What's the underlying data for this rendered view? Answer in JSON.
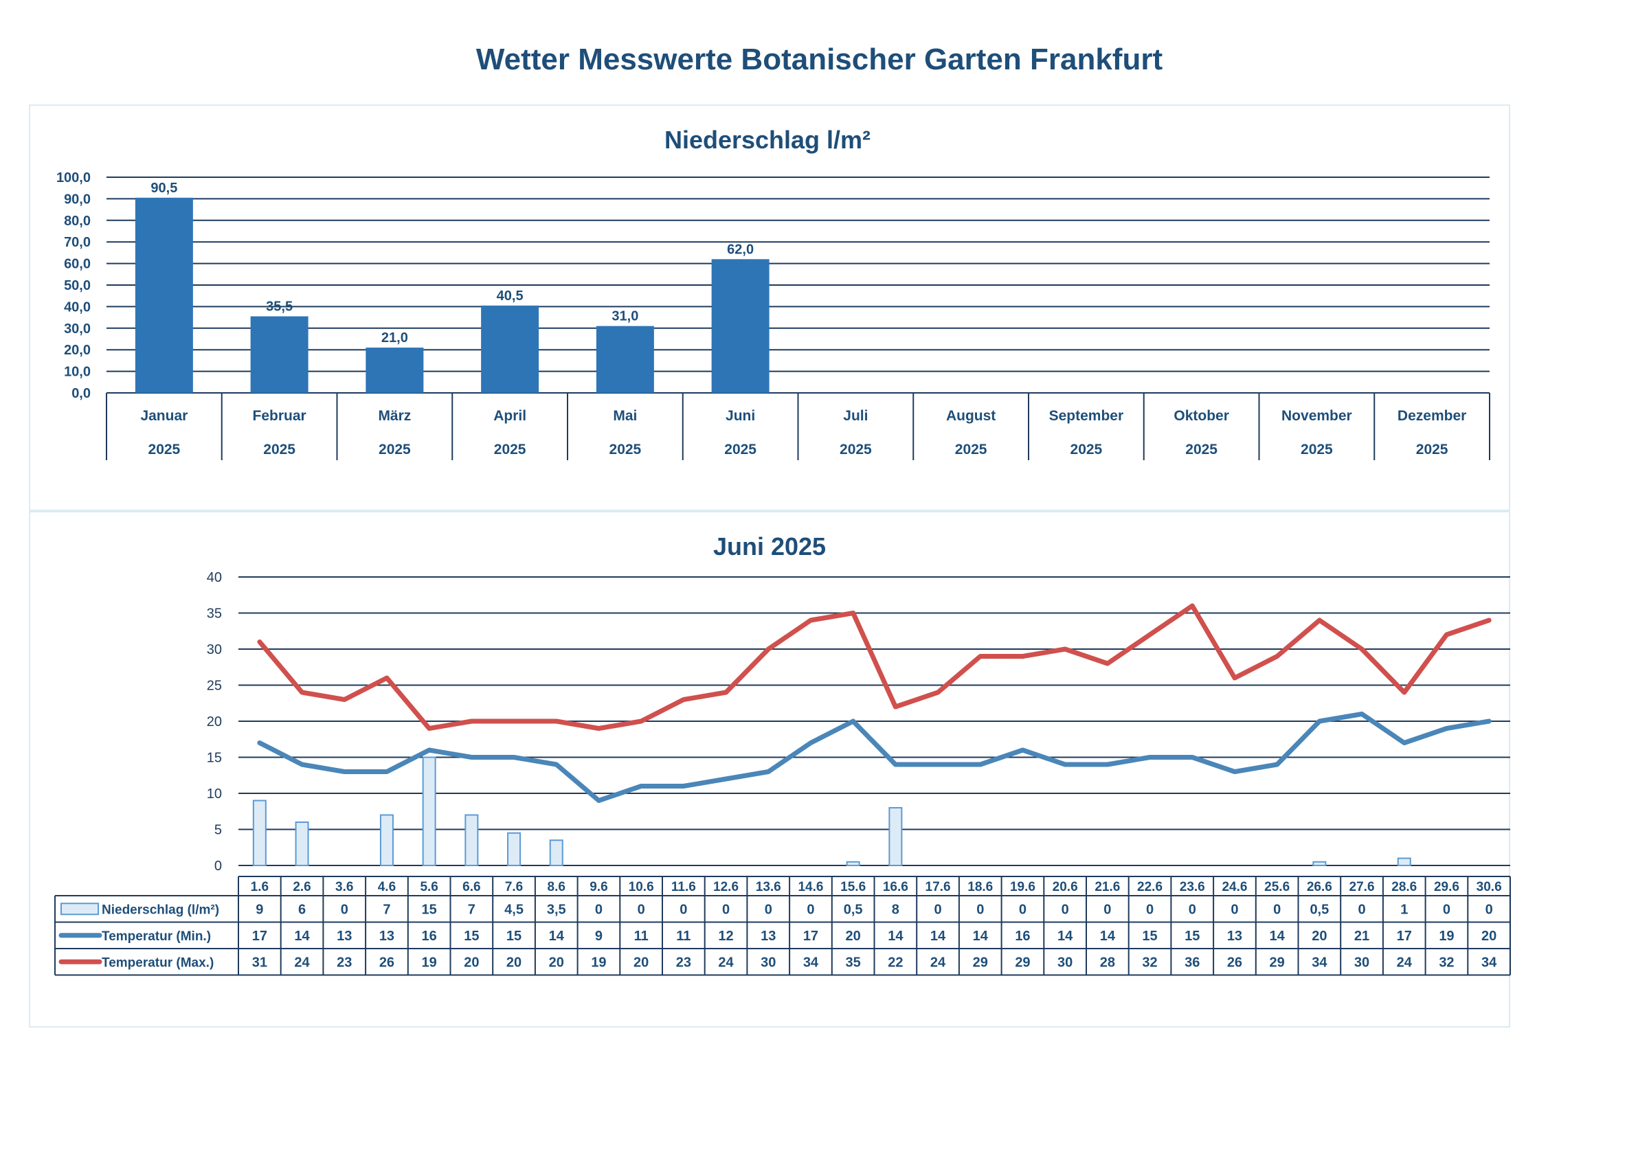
{
  "title": "Wetter Messwerte Botanischer Garten Frankfurt",
  "colors": {
    "title": "#1e4e79",
    "bar": "#2e75b6",
    "bar_light": "#ddebf7",
    "bar_light_border": "#5b9bd5",
    "line_min": "#4a86b8",
    "line_max": "#d0504d",
    "grid": "#1f3b5c"
  },
  "chart_data": [
    {
      "type": "bar",
      "title": "Niederschlag l/m²",
      "categories": [
        "Januar",
        "Februar",
        "März",
        "April",
        "Mai",
        "Juni",
        "Juli",
        "August",
        "September",
        "Oktober",
        "November",
        "Dezember"
      ],
      "category_year": "2025",
      "values": [
        90.5,
        35.5,
        21.0,
        40.5,
        31.0,
        62.0,
        null,
        null,
        null,
        null,
        null,
        null
      ],
      "value_labels": [
        "90,5",
        "35,5",
        "21,0",
        "40,5",
        "31,0",
        "62,0",
        "",
        "",
        "",
        "",
        "",
        ""
      ],
      "ylim": [
        0,
        100
      ],
      "yticks": [
        "0,0",
        "10,0",
        "20,0",
        "30,0",
        "40,0",
        "50,0",
        "60,0",
        "70,0",
        "80,0",
        "90,0",
        "100,0"
      ],
      "grid": true
    },
    {
      "type": "line",
      "title": "Juni 2025",
      "categories": [
        "1.6",
        "2.6",
        "3.6",
        "4.6",
        "5.6",
        "6.6",
        "7.6",
        "8.6",
        "9.6",
        "10.6",
        "11.6",
        "12.6",
        "13.6",
        "14.6",
        "15.6",
        "16.6",
        "17.6",
        "18.6",
        "19.6",
        "20.6",
        "21.6",
        "22.6",
        "23.6",
        "24.6",
        "25.6",
        "26.6",
        "27.6",
        "28.6",
        "29.6",
        "30.6"
      ],
      "ylim": [
        0,
        40
      ],
      "yticks": [
        "0",
        "5",
        "10",
        "15",
        "20",
        "25",
        "30",
        "35",
        "40"
      ],
      "grid": true,
      "legend_placement": "data-table",
      "series": [
        {
          "name": "Niederschlag (l/m²)",
          "kind": "bar",
          "values": [
            9,
            6,
            0,
            7,
            15,
            7,
            4.5,
            3.5,
            0,
            0,
            0,
            0,
            0,
            0,
            0.5,
            8,
            0,
            0,
            0,
            0,
            0,
            0,
            0,
            0,
            0,
            0.5,
            0,
            1,
            0,
            0
          ],
          "labels": [
            "9",
            "6",
            "0",
            "7",
            "15",
            "7",
            "4,5",
            "3,5",
            "0",
            "0",
            "0",
            "0",
            "0",
            "0",
            "0,5",
            "8",
            "0",
            "0",
            "0",
            "0",
            "0",
            "0",
            "0",
            "0",
            "0",
            "0,5",
            "0",
            "1",
            "0",
            "0"
          ]
        },
        {
          "name": "Temperatur (Min.)",
          "kind": "line",
          "values": [
            17,
            14,
            13,
            13,
            16,
            15,
            15,
            14,
            9,
            11,
            11,
            12,
            13,
            17,
            20,
            14,
            14,
            14,
            16,
            14,
            14,
            15,
            15,
            13,
            14,
            20,
            21,
            17,
            19,
            20
          ],
          "labels": [
            "17",
            "14",
            "13",
            "13",
            "16",
            "15",
            "15",
            "14",
            "9",
            "11",
            "11",
            "12",
            "13",
            "17",
            "20",
            "14",
            "14",
            "14",
            "16",
            "14",
            "14",
            "15",
            "15",
            "13",
            "14",
            "20",
            "21",
            "17",
            "19",
            "20"
          ]
        },
        {
          "name": "Temperatur (Max.)",
          "kind": "line",
          "values": [
            31,
            24,
            23,
            26,
            19,
            20,
            20,
            20,
            19,
            20,
            23,
            24,
            30,
            34,
            35,
            22,
            24,
            29,
            29,
            30,
            28,
            32,
            36,
            26,
            29,
            34,
            30,
            24,
            32,
            34
          ],
          "labels": [
            "31",
            "24",
            "23",
            "26",
            "19",
            "20",
            "20",
            "20",
            "19",
            "20",
            "23",
            "24",
            "30",
            "34",
            "35",
            "22",
            "24",
            "29",
            "29",
            "30",
            "28",
            "32",
            "36",
            "26",
            "29",
            "34",
            "30",
            "24",
            "32",
            "34"
          ]
        }
      ]
    }
  ]
}
